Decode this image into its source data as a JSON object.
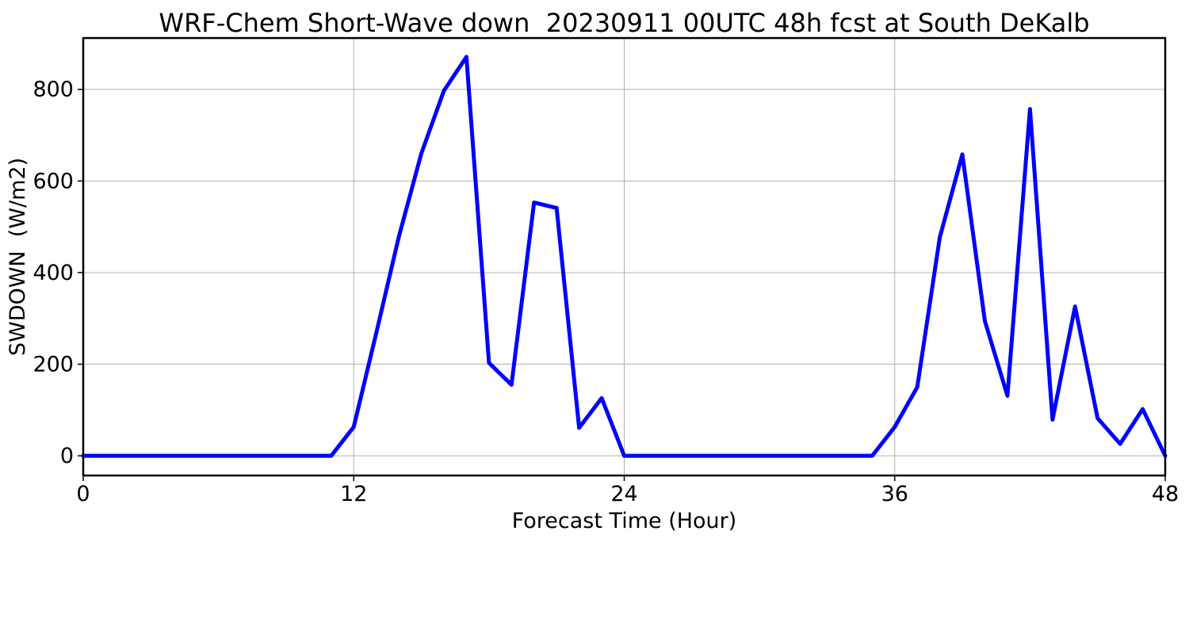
{
  "chart_data": {
    "type": "line",
    "title": "WRF-Chem Short-Wave down  20230911 00UTC 48h fcst at South DeKalb",
    "xlabel": "Forecast Time (Hour)",
    "ylabel": "SWDOWN  (W/m2)",
    "xlim": [
      0,
      48
    ],
    "ylim": [
      -43,
      912
    ],
    "xticks": [
      0,
      12,
      24,
      36,
      48
    ],
    "xtick_labels": [
      "0",
      "12",
      "24",
      "36",
      "48"
    ],
    "yticks": [
      0,
      200,
      400,
      600,
      800
    ],
    "ytick_labels": [
      "0",
      "200",
      "400",
      "600",
      "800"
    ],
    "grid": true,
    "series": [
      {
        "color": "#0000ff",
        "x": [
          0,
          1,
          2,
          3,
          4,
          5,
          6,
          7,
          8,
          9,
          10,
          11,
          12,
          13,
          14,
          15,
          16,
          17,
          18,
          19,
          20,
          21,
          22,
          23,
          24,
          25,
          26,
          27,
          28,
          29,
          30,
          31,
          32,
          33,
          34,
          35,
          36,
          37,
          38,
          39,
          40,
          41,
          42,
          43,
          44,
          45,
          46,
          47,
          48
        ],
        "values": [
          0,
          0,
          0,
          0,
          0,
          0,
          0,
          0,
          0,
          0,
          0,
          0,
          63,
          268,
          478,
          660,
          797,
          871,
          203,
          155,
          553,
          541,
          61,
          126,
          0,
          0,
          0,
          0,
          0,
          0,
          0,
          0,
          0,
          0,
          0,
          0,
          63,
          150,
          477,
          658,
          294,
          131,
          757,
          79,
          326,
          82,
          26,
          102,
          0
        ]
      }
    ]
  }
}
